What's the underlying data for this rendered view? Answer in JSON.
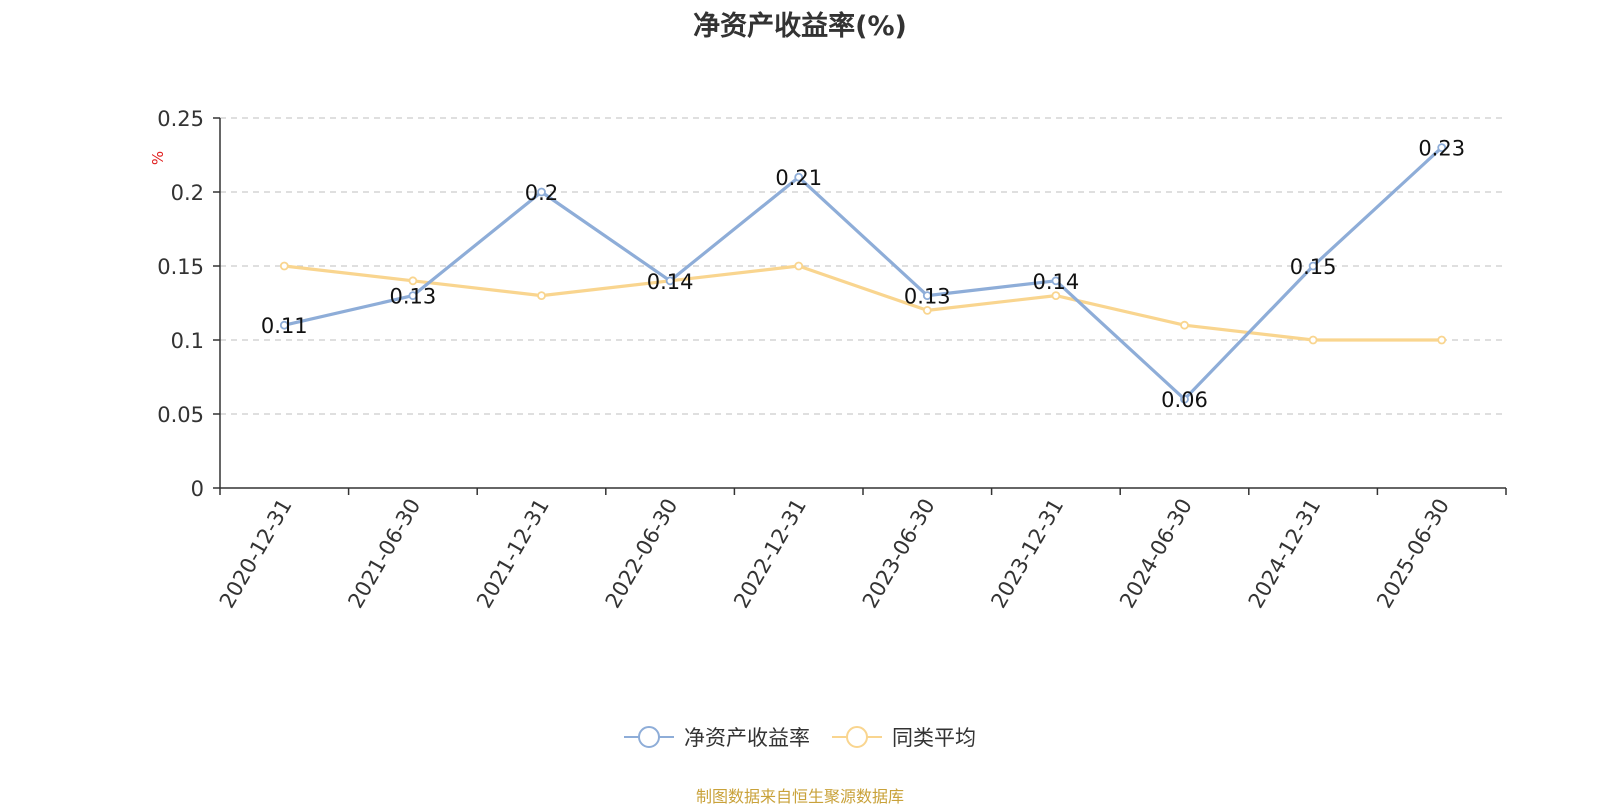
{
  "title": "净资产收益率(%)",
  "source_note": "制图数据来自恒生聚源数据库",
  "colors": {
    "roe": "#8eadd8",
    "avg": "#f9d58f",
    "grid": "#cccccc",
    "axis": "#333333",
    "unit": "#e02020",
    "source": "#c9a23a"
  },
  "chart_data": {
    "type": "line",
    "title": "净资产收益率(%)",
    "ylabel": "%",
    "xlabel": "",
    "ylim": [
      0,
      0.25
    ],
    "yticks": [
      "0",
      "0.05",
      "0.1",
      "0.15",
      "0.2",
      "0.25"
    ],
    "grid": true,
    "legend_position": "bottom",
    "categories": [
      "2020-12-31",
      "2021-06-30",
      "2021-12-31",
      "2022-06-30",
      "2022-12-31",
      "2023-06-30",
      "2023-12-31",
      "2024-06-30",
      "2024-12-31",
      "2025-06-30"
    ],
    "series": [
      {
        "name": "净资产收益率",
        "values": [
          0.11,
          0.13,
          0.2,
          0.14,
          0.21,
          0.13,
          0.14,
          0.06,
          0.15,
          0.23
        ],
        "labels": [
          "0.11",
          "0.13",
          "0.2",
          "0.14",
          "0.21",
          "0.13",
          "0.14",
          "0.06",
          "0.15",
          "0.23"
        ],
        "color": "#8eadd8"
      },
      {
        "name": "同类平均",
        "values": [
          0.15,
          0.14,
          0.13,
          0.14,
          0.15,
          0.12,
          0.13,
          0.11,
          0.1,
          0.1
        ],
        "color": "#f9d58f"
      }
    ]
  }
}
